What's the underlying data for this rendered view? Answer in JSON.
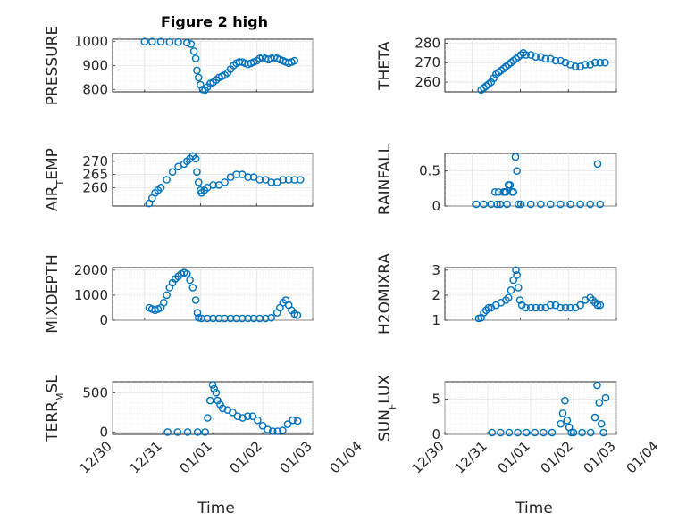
{
  "figure": {
    "title": "Figure 2 high",
    "marker_color": "#0072BD"
  },
  "chart_data": [
    {
      "type": "scatter",
      "ylabel": "PRESSURE",
      "title": "Figure 2 high",
      "xlim": [
        "12/31",
        "01/04"
      ],
      "ylim": [
        790,
        1010
      ],
      "yticks": [
        800,
        900,
        1000
      ],
      "grid": true,
      "minor_grid": true,
      "marker": "circle",
      "x": [
        0.12,
        0.25,
        0.4,
        0.55,
        0.7,
        0.85,
        0.92,
        0.97,
        1.0,
        1.02,
        1.05,
        1.08,
        1.12,
        1.16,
        1.2,
        1.25,
        1.3,
        1.35,
        1.4,
        1.45,
        1.5,
        1.55,
        1.6,
        1.65,
        1.7,
        1.75,
        1.8,
        1.85,
        1.9,
        1.95,
        2.0,
        2.05,
        2.1,
        2.15,
        2.2,
        2.25,
        2.3,
        2.35,
        2.4,
        2.45,
        2.5,
        2.55,
        2.6,
        2.65,
        2.7
      ],
      "y": [
        1000,
        1000,
        1000,
        998,
        998,
        995,
        990,
        960,
        930,
        880,
        850,
        820,
        800,
        795,
        810,
        825,
        830,
        840,
        850,
        855,
        860,
        870,
        885,
        900,
        910,
        915,
        915,
        910,
        905,
        910,
        915,
        920,
        930,
        935,
        930,
        925,
        930,
        935,
        930,
        925,
        920,
        915,
        910,
        915,
        920
      ]
    },
    {
      "type": "scatter",
      "ylabel": "THETA",
      "xlim": [
        "12/31",
        "01/04"
      ],
      "ylim": [
        255,
        282
      ],
      "yticks": [
        260,
        270,
        280
      ],
      "grid": true,
      "minor_grid": true,
      "marker": "circle",
      "x": [
        0.3,
        0.35,
        0.4,
        0.45,
        0.5,
        0.55,
        0.6,
        0.65,
        0.7,
        0.75,
        0.8,
        0.85,
        0.9,
        0.95,
        1.0,
        1.05,
        1.1,
        1.15,
        1.2,
        1.3,
        1.4,
        1.5,
        1.6,
        1.7,
        1.8,
        1.9,
        2.0,
        2.1,
        2.2,
        2.3,
        2.4,
        2.5,
        2.6,
        2.7,
        2.8
      ],
      "y": [
        256,
        257,
        258,
        259,
        260,
        262,
        264,
        265,
        266,
        267,
        268,
        269,
        270,
        271,
        272,
        273,
        274,
        275,
        274,
        274,
        273,
        273,
        272,
        272,
        271,
        271,
        270,
        269,
        268,
        268,
        269,
        269,
        270,
        270,
        270
      ]
    },
    {
      "type": "scatter",
      "ylabel": "AIR_TEMP",
      "xlim": [
        "12/31",
        "01/04"
      ],
      "ylim": [
        253,
        273
      ],
      "yticks": [
        260,
        265,
        270
      ],
      "grid": true,
      "minor_grid": true,
      "marker": "circle",
      "x": [
        0.2,
        0.25,
        0.3,
        0.35,
        0.4,
        0.5,
        0.6,
        0.7,
        0.8,
        0.85,
        0.9,
        0.95,
        1.0,
        1.02,
        1.05,
        1.08,
        1.1,
        1.15,
        1.2,
        1.3,
        1.4,
        1.5,
        1.6,
        1.7,
        1.8,
        1.9,
        2.0,
        2.1,
        2.2,
        2.3,
        2.4,
        2.5,
        2.6,
        2.7,
        2.8
      ],
      "y": [
        254,
        256,
        258,
        259,
        260,
        263,
        266,
        268,
        269,
        270,
        271,
        272,
        271,
        266,
        262,
        259,
        258,
        259,
        260,
        261,
        261,
        262,
        264,
        265,
        265,
        264,
        264,
        263,
        263,
        262,
        262,
        263,
        263,
        263,
        263
      ]
    },
    {
      "type": "scatter",
      "ylabel": "RAINFALL",
      "xlim": [
        "12/31",
        "01/04"
      ],
      "ylim": [
        0,
        0.75
      ],
      "yticks": [
        0,
        0.5
      ],
      "grid": true,
      "minor_grid": true,
      "marker": "circle",
      "x": [
        0.2,
        0.35,
        0.5,
        0.58,
        0.62,
        0.65,
        0.68,
        0.75,
        0.78,
        0.8,
        0.82,
        0.85,
        0.88,
        0.92,
        0.95,
        0.99,
        1.02,
        1.05,
        1.1,
        1.3,
        1.5,
        1.7,
        1.9,
        2.1,
        2.3,
        2.5,
        2.65,
        2.7
      ],
      "y": [
        0,
        0,
        0,
        0.2,
        0,
        0.2,
        0,
        0.2,
        0.2,
        0.2,
        0,
        0.3,
        0.3,
        0.2,
        0.2,
        0.7,
        0.5,
        0,
        0,
        0,
        0,
        0,
        0,
        0,
        0,
        0,
        0.6,
        0
      ]
    },
    {
      "type": "scatter",
      "ylabel": "MIXDEPTH",
      "xlim": [
        "12/31",
        "01/04"
      ],
      "ylim": [
        0,
        2100
      ],
      "yticks": [
        0,
        1000,
        2000
      ],
      "grid": true,
      "minor_grid": true,
      "marker": "circle",
      "x": [
        0.2,
        0.25,
        0.3,
        0.35,
        0.4,
        0.45,
        0.5,
        0.55,
        0.6,
        0.65,
        0.7,
        0.75,
        0.8,
        0.85,
        0.9,
        0.95,
        1.0,
        1.03,
        1.05,
        1.1,
        1.2,
        1.3,
        1.4,
        1.5,
        1.6,
        1.7,
        1.8,
        1.9,
        2.0,
        2.1,
        2.2,
        2.3,
        2.4,
        2.45,
        2.5,
        2.55,
        2.6,
        2.65,
        2.7,
        2.75
      ],
      "y": [
        500,
        450,
        400,
        450,
        500,
        700,
        1000,
        1300,
        1500,
        1650,
        1750,
        1850,
        1900,
        1850,
        1600,
        1300,
        800,
        300,
        100,
        50,
        40,
        30,
        40,
        50,
        40,
        30,
        40,
        40,
        30,
        40,
        50,
        100,
        300,
        500,
        700,
        800,
        600,
        400,
        250,
        200
      ]
    },
    {
      "type": "scatter",
      "ylabel": "H2OMIXRA",
      "xlim": [
        "12/31",
        "01/04"
      ],
      "ylim": [
        1,
        3.1
      ],
      "yticks": [
        1,
        2,
        3
      ],
      "grid": true,
      "minor_grid": true,
      "marker": "circle",
      "x": [
        0.25,
        0.3,
        0.35,
        0.4,
        0.45,
        0.5,
        0.6,
        0.7,
        0.8,
        0.85,
        0.9,
        0.95,
        1.0,
        1.02,
        1.05,
        1.08,
        1.12,
        1.2,
        1.3,
        1.4,
        1.5,
        1.6,
        1.7,
        1.8,
        1.9,
        2.0,
        2.1,
        2.2,
        2.3,
        2.4,
        2.5,
        2.55,
        2.6,
        2.65,
        2.7
      ],
      "y": [
        1.0,
        1.1,
        1.3,
        1.4,
        1.5,
        1.5,
        1.6,
        1.7,
        1.8,
        1.9,
        2.2,
        2.6,
        3.0,
        2.8,
        2.3,
        1.8,
        1.6,
        1.5,
        1.5,
        1.5,
        1.5,
        1.5,
        1.6,
        1.6,
        1.5,
        1.5,
        1.5,
        1.5,
        1.6,
        1.8,
        1.9,
        1.8,
        1.7,
        1.6,
        1.6
      ]
    },
    {
      "type": "scatter",
      "ylabel": "TERR_MSL",
      "xlim": [
        "12/30",
        "01/04"
      ],
      "ylim": [
        -30,
        640
      ],
      "yticks": [
        0,
        500
      ],
      "grid": true,
      "minor_grid": true,
      "marker": "circle",
      "x": [
        1.1,
        1.3,
        1.5,
        1.7,
        1.85,
        1.9,
        1.95,
        2.0,
        2.03,
        2.07,
        2.1,
        2.15,
        2.2,
        2.3,
        2.4,
        2.5,
        2.6,
        2.7,
        2.8,
        2.9,
        3.0,
        3.1,
        3.2,
        3.3,
        3.4,
        3.5,
        3.6,
        3.7
      ],
      "y": [
        0,
        0,
        0,
        0,
        0,
        180,
        400,
        600,
        550,
        500,
        400,
        350,
        300,
        280,
        250,
        200,
        180,
        200,
        200,
        150,
        80,
        30,
        10,
        10,
        20,
        100,
        150,
        140
      ]
    },
    {
      "type": "scatter",
      "ylabel": "SUN_FLUX",
      "xlim": [
        "12/30",
        "01/04"
      ],
      "ylim": [
        0,
        7.5
      ],
      "yticks": [
        0,
        5
      ],
      "grid": true,
      "minor_grid": true,
      "marker": "circle",
      "x": [
        1.1,
        1.3,
        1.5,
        1.7,
        1.9,
        2.1,
        2.3,
        2.5,
        2.7,
        2.75,
        2.8,
        2.85,
        2.9,
        2.95,
        3.0,
        3.2,
        3.4,
        3.5,
        3.55,
        3.6,
        3.65,
        3.7,
        3.75
      ],
      "y": [
        0,
        0,
        0,
        0,
        0,
        0,
        0,
        0,
        1.5,
        3.0,
        4.8,
        2.0,
        1.0,
        0,
        0,
        0,
        0,
        2.4,
        7.0,
        4.5,
        1.5,
        0,
        5.2
      ]
    }
  ],
  "axes": [
    {
      "ytick_labels": [
        "800",
        "900",
        "1000"
      ],
      "ylabel_main": "PRESSURE",
      "ylabel_sub": "",
      "ylabel_tail": ""
    },
    {
      "ytick_labels": [
        "260",
        "270",
        "280"
      ],
      "ylabel_main": "THETA",
      "ylabel_sub": "",
      "ylabel_tail": ""
    },
    {
      "ytick_labels": [
        "260",
        "265",
        "270"
      ],
      "ylabel_main": "AIR",
      "ylabel_sub": "T",
      "ylabel_tail": "EMP"
    },
    {
      "ytick_labels": [
        "0",
        "0.5"
      ],
      "ylabel_main": "RAINFALL",
      "ylabel_sub": "",
      "ylabel_tail": ""
    },
    {
      "ytick_labels": [
        "0",
        "1000",
        "2000"
      ],
      "ylabel_main": "MIXDEPTH",
      "ylabel_sub": "",
      "ylabel_tail": ""
    },
    {
      "ytick_labels": [
        "1",
        "2",
        "3"
      ],
      "ylabel_main": "H2OMIXRA",
      "ylabel_sub": "",
      "ylabel_tail": ""
    },
    {
      "ytick_labels": [
        "0",
        "500"
      ],
      "ylabel_main": "TERR",
      "ylabel_sub": "M",
      "ylabel_tail": "SL"
    },
    {
      "ytick_labels": [
        "0",
        "5"
      ],
      "ylabel_main": "SUN",
      "ylabel_sub": "F",
      "ylabel_tail": "LUX"
    }
  ],
  "bottom_xaxis": {
    "label": "Time",
    "tick_labels": [
      "12/30",
      "12/31",
      "01/01",
      "01/02",
      "01/03",
      "01/04"
    ]
  }
}
